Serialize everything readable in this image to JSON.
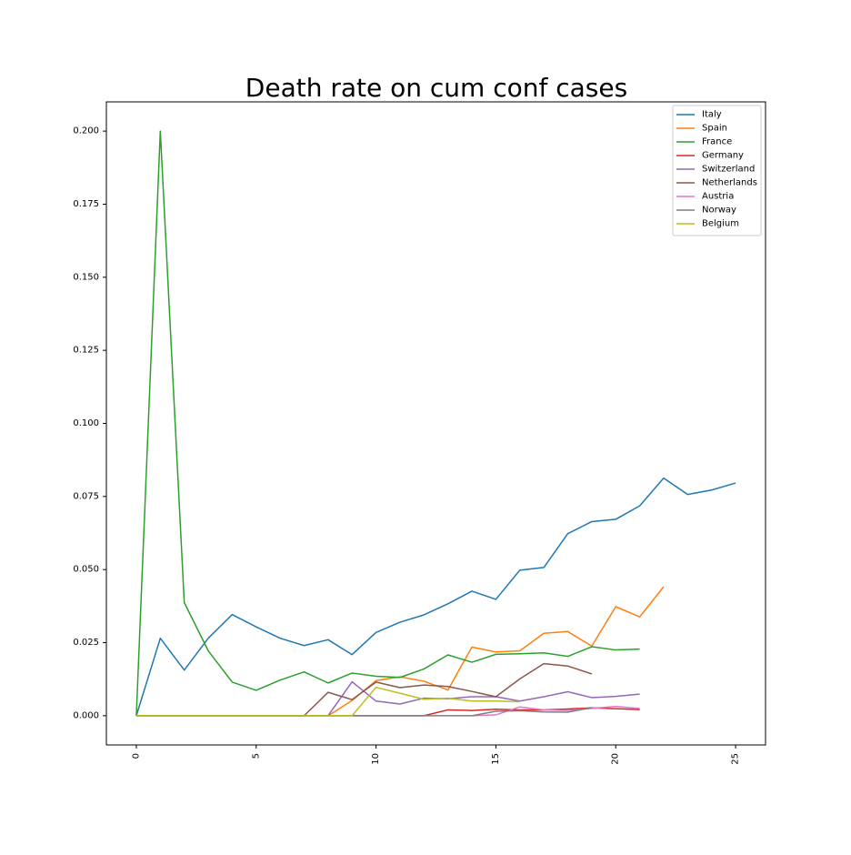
{
  "chart_data": {
    "type": "line",
    "title": "Death rate on cum conf cases",
    "xlabel": "",
    "ylabel": "",
    "xlim": [
      -1.25,
      26.25
    ],
    "ylim": [
      -0.01,
      0.21
    ],
    "xticks": [
      0,
      5,
      10,
      15,
      20,
      25
    ],
    "yticks": [
      "0.000",
      "0.025",
      "0.050",
      "0.075",
      "0.100",
      "0.125",
      "0.150",
      "0.175",
      "0.200"
    ],
    "grid": false,
    "legend_position": "top-right",
    "series": [
      {
        "name": "Italy",
        "color": "#1f77b4",
        "x": [
          0,
          1,
          2,
          3,
          4,
          5,
          6,
          7,
          8,
          9,
          10,
          11,
          12,
          13,
          14,
          15,
          16,
          17,
          18,
          19,
          20,
          21,
          22,
          23,
          24,
          25
        ],
        "y": [
          0.0,
          0.0265,
          0.0156,
          0.0265,
          0.0346,
          0.0304,
          0.0265,
          0.024,
          0.026,
          0.0209,
          0.0285,
          0.032,
          0.0345,
          0.0383,
          0.0426,
          0.0398,
          0.0498,
          0.0507,
          0.0623,
          0.0664,
          0.0672,
          0.0718,
          0.0813,
          0.0757,
          0.0772,
          0.0796
        ]
      },
      {
        "name": "Spain",
        "color": "#ff7f0e",
        "x": [
          0,
          1,
          2,
          3,
          4,
          5,
          6,
          7,
          8,
          9,
          10,
          11,
          12,
          13,
          14,
          15,
          16,
          17,
          18,
          19,
          20,
          21,
          22
        ],
        "y": [
          0,
          0,
          0,
          0,
          0,
          0,
          0,
          0,
          0,
          0.0052,
          0.012,
          0.0133,
          0.0118,
          0.0088,
          0.0235,
          0.0218,
          0.0222,
          0.0282,
          0.0288,
          0.0238,
          0.0373,
          0.0338,
          0.0441
        ]
      },
      {
        "name": "France",
        "color": "#2ca02c",
        "x": [
          0,
          1,
          2,
          3,
          4,
          5,
          6,
          7,
          8,
          9,
          10,
          11,
          12,
          13,
          14,
          15,
          16,
          17,
          18,
          19,
          20,
          21
        ],
        "y": [
          0.0,
          0.2,
          0.0387,
          0.0222,
          0.0115,
          0.0087,
          0.0122,
          0.015,
          0.0112,
          0.0146,
          0.0135,
          0.0131,
          0.016,
          0.0208,
          0.0183,
          0.021,
          0.0212,
          0.0215,
          0.0203,
          0.0236,
          0.0225,
          0.0228
        ]
      },
      {
        "name": "Germany",
        "color": "#d62728",
        "x": [
          0,
          1,
          2,
          3,
          4,
          5,
          6,
          7,
          8,
          9,
          10,
          11,
          12,
          13,
          14,
          15,
          16,
          17,
          18,
          19,
          20,
          21
        ],
        "y": [
          0,
          0,
          0,
          0,
          0,
          0,
          0,
          0,
          0,
          0,
          0,
          0,
          0,
          0.002,
          0.0018,
          0.0022,
          0.002,
          0.002,
          0.0023,
          0.0027,
          0.0024,
          0.0021
        ]
      },
      {
        "name": "Switzerland",
        "color": "#9467bd",
        "x": [
          8,
          9,
          10,
          11,
          12,
          13,
          14,
          15,
          16,
          17,
          18,
          19,
          20,
          21
        ],
        "y": [
          0.0,
          0.0116,
          0.005,
          0.004,
          0.006,
          0.0058,
          0.0065,
          0.0065,
          0.005,
          0.0065,
          0.0082,
          0.0062,
          0.0066,
          0.0074
        ]
      },
      {
        "name": "Netherlands",
        "color": "#8c564b",
        "x": [
          0,
          1,
          2,
          3,
          4,
          5,
          6,
          7,
          8,
          9,
          10,
          11,
          12,
          13,
          14,
          15,
          16,
          17,
          18,
          19
        ],
        "y": [
          0,
          0,
          0,
          0,
          0,
          0,
          0,
          0,
          0.008,
          0.0055,
          0.0115,
          0.0096,
          0.0105,
          0.01,
          0.0083,
          0.0065,
          0.0126,
          0.0178,
          0.017,
          0.0143
        ]
      },
      {
        "name": "Austria",
        "color": "#e377c2",
        "x": [
          14,
          15,
          16,
          17,
          18,
          19,
          20,
          21
        ],
        "y": [
          0.0,
          0.0003,
          0.003,
          0.002,
          0.0018,
          0.0025,
          0.0032,
          0.0025
        ]
      },
      {
        "name": "Norway",
        "color": "#7f7f7f",
        "x": [
          0,
          1,
          2,
          3,
          4,
          5,
          6,
          7,
          8,
          9,
          10,
          11,
          12,
          13,
          14,
          15,
          16,
          17,
          18,
          19
        ],
        "y": [
          0,
          0,
          0,
          0,
          0,
          0,
          0,
          0,
          0,
          0,
          0,
          0,
          0,
          0,
          0,
          0.0015,
          0.0017,
          0.0013,
          0.0012,
          0.0028
        ]
      },
      {
        "name": "Belgium",
        "color": "#bcbd22",
        "x": [
          0,
          1,
          2,
          3,
          4,
          5,
          6,
          7,
          8,
          9,
          10,
          11,
          12,
          13,
          14,
          15,
          16
        ],
        "y": [
          0,
          0,
          0,
          0,
          0,
          0,
          0,
          0,
          0,
          0,
          0.0097,
          0.0077,
          0.0056,
          0.006,
          0.005,
          0.005,
          0.0048
        ]
      }
    ]
  }
}
